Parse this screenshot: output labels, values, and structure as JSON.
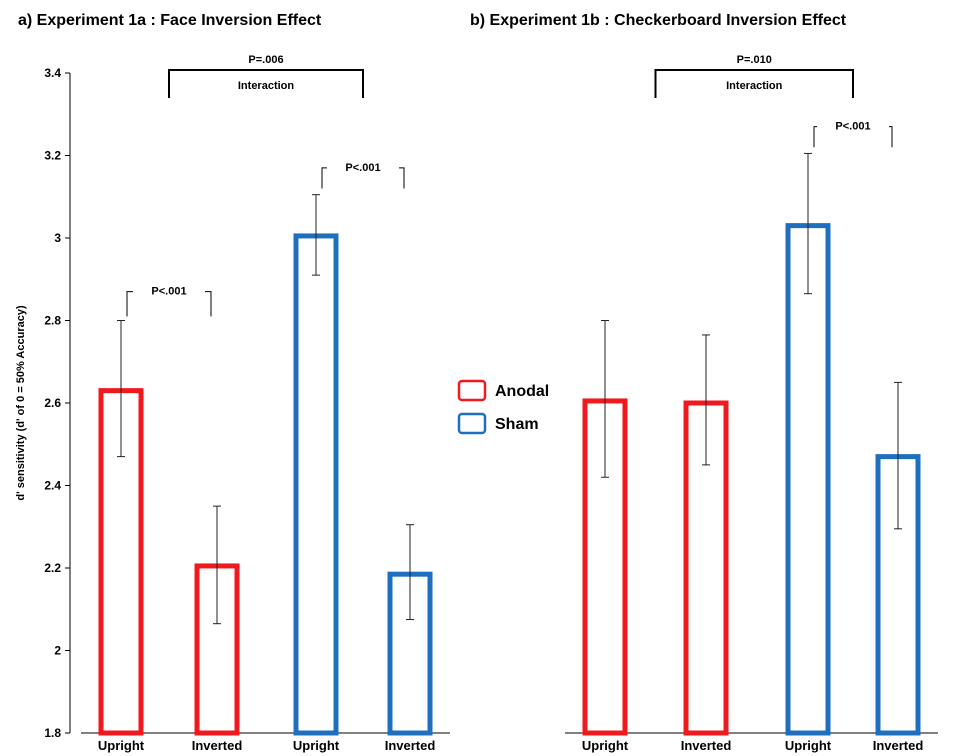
{
  "colors": {
    "anodal": "#f0191e",
    "sham": "#1f6fbf",
    "axis": "#000000"
  },
  "chart_data": {
    "type": "bar",
    "ylabel": "d' sensitivity (d' of 0 = 50% Accuracy)",
    "ylim": [
      1.8,
      3.4
    ],
    "yticks": [
      1.8,
      2,
      2.2,
      2.4,
      2.6,
      2.8,
      3,
      3.2,
      3.4
    ],
    "ytick_labels": [
      "1.8",
      "2",
      "2.2",
      "2.4",
      "2.6",
      "2.8",
      "3",
      "3.2",
      "3.4"
    ],
    "legend": {
      "placement": "center",
      "entries": [
        {
          "name": "Anodal",
          "color": "#f0191e"
        },
        {
          "name": "Sham",
          "color": "#1f6fbf"
        }
      ]
    },
    "panels": [
      {
        "title": "a) Experiment 1a : Face Inversion Effect",
        "categories": [
          "Upright",
          "Inverted",
          "Upright",
          "Inverted"
        ],
        "groups": [
          "Anodal",
          "Anodal",
          "Sham",
          "Sham"
        ],
        "values": [
          2.63,
          2.205,
          3.005,
          2.185
        ],
        "err_low": [
          2.47,
          2.065,
          2.91,
          2.075
        ],
        "err_high": [
          2.8,
          2.35,
          3.105,
          2.305
        ],
        "annotations": [
          {
            "from": 0,
            "to": 1,
            "text": "P<.001",
            "y": 2.87,
            "drop": 2.81
          },
          {
            "from": 2,
            "to": 3,
            "text": "P<.001",
            "y": 3.17,
            "drop": 3.12
          }
        ],
        "interaction": {
          "from": 0.5,
          "to": 2.5,
          "p_text": "P=.006",
          "label": "Interaction"
        }
      },
      {
        "title": "b) Experiment 1b : Checkerboard Inversion Effect",
        "categories": [
          "Upright",
          "Inverted",
          "Upright",
          "Inverted"
        ],
        "groups": [
          "Anodal",
          "Anodal",
          "Sham",
          "Sham"
        ],
        "values": [
          2.605,
          2.6,
          3.03,
          2.47
        ],
        "err_low": [
          2.42,
          2.45,
          2.865,
          2.295
        ],
        "err_high": [
          2.8,
          2.765,
          3.205,
          2.65
        ],
        "annotations": [
          {
            "from": 2,
            "to": 3,
            "text": "P<.001",
            "y": 3.27,
            "drop": 3.22
          }
        ],
        "interaction": {
          "from": 0.5,
          "to": 2.5,
          "p_text": "P=.010",
          "label": "Interaction"
        }
      }
    ]
  }
}
